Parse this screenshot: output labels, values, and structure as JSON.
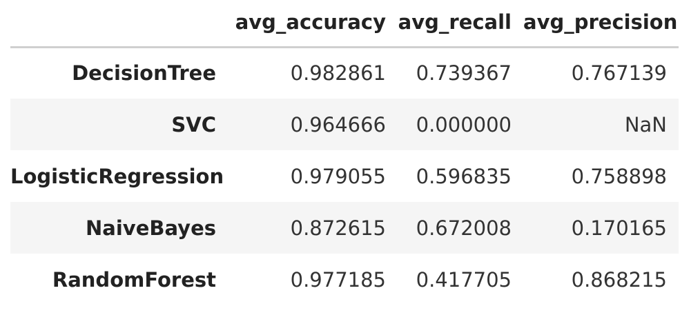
{
  "table": {
    "index_header": "",
    "columns": [
      "avg_accuracy",
      "avg_recall",
      "avg_precision"
    ],
    "rows": [
      {
        "index": "DecisionTree",
        "values": [
          "0.982861",
          "0.739367",
          "0.767139"
        ]
      },
      {
        "index": "SVC",
        "values": [
          "0.964666",
          "0.000000",
          "NaN"
        ]
      },
      {
        "index": "LogisticRegression",
        "values": [
          "0.979055",
          "0.596835",
          "0.758898"
        ]
      },
      {
        "index": "NaiveBayes",
        "values": [
          "0.872615",
          "0.672008",
          "0.170165"
        ]
      },
      {
        "index": "RandomForest",
        "values": [
          "0.977185",
          "0.417705",
          "0.868215"
        ]
      }
    ]
  }
}
